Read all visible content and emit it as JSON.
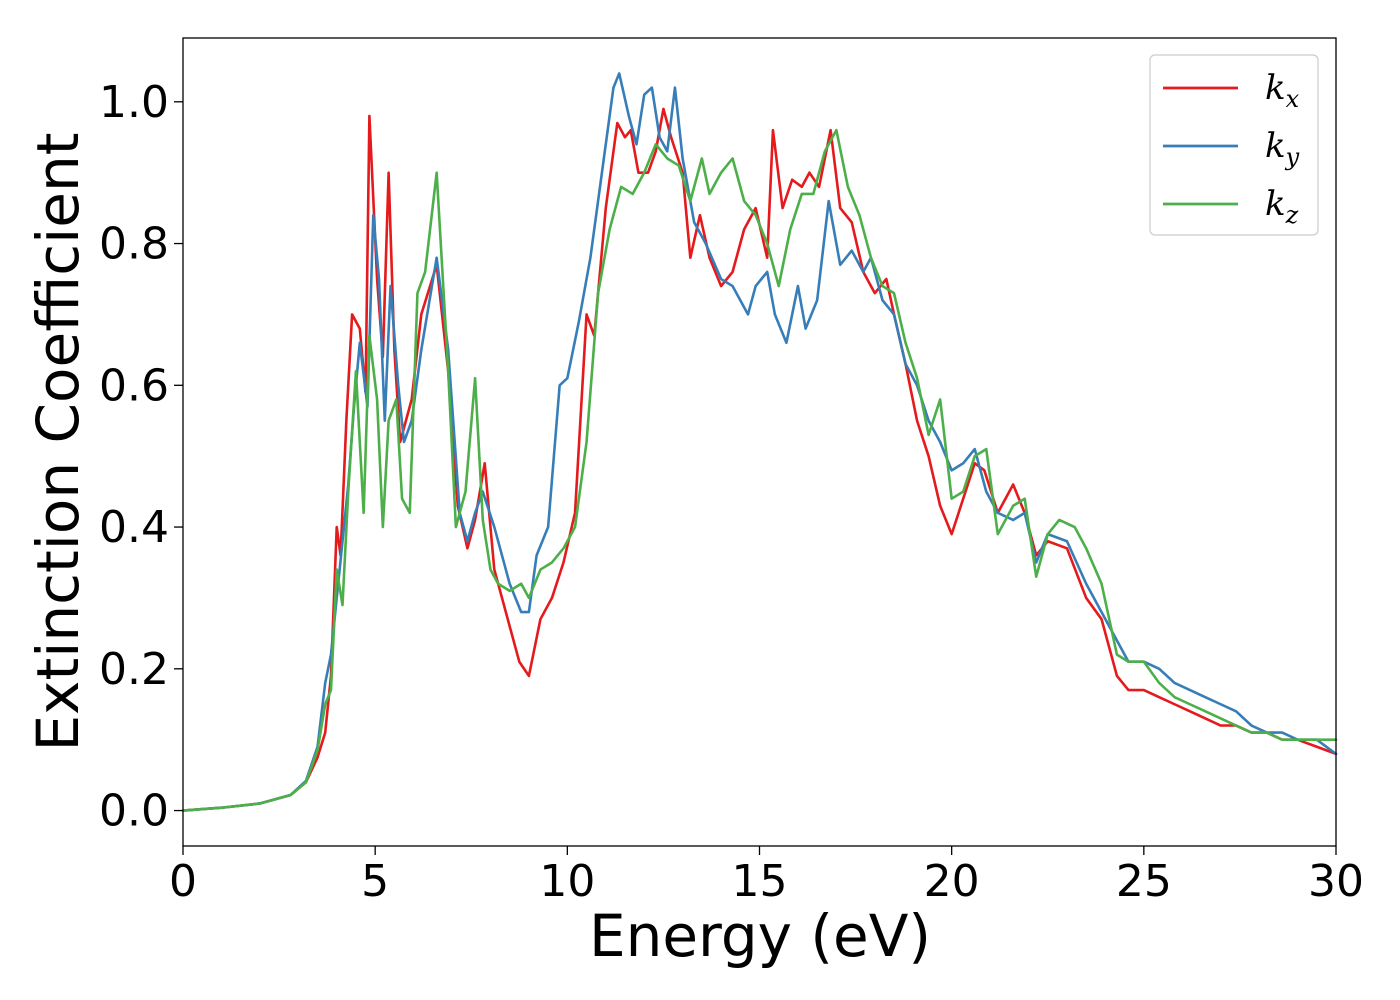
{
  "chart_data": {
    "type": "line",
    "title": "",
    "xlabel": "Energy (eV)",
    "ylabel": "Extinction Coefficient",
    "xlim": [
      0,
      30
    ],
    "ylim": [
      -0.05,
      1.09
    ],
    "xticks": [
      0,
      5,
      10,
      15,
      20,
      25,
      30
    ],
    "yticks": [
      0.0,
      0.2,
      0.4,
      0.6,
      0.8,
      1.0
    ],
    "xtick_labels": [
      "0",
      "5",
      "10",
      "15",
      "20",
      "25",
      "30"
    ],
    "ytick_labels": [
      "0.0",
      "0.2",
      "0.4",
      "0.6",
      "0.8",
      "1.0"
    ],
    "grid": false,
    "legend_position": "top-right",
    "series": [
      {
        "name": "k",
        "subscript": "x",
        "color": "#e41a1c",
        "x": [
          0,
          1,
          2,
          2.8,
          3.2,
          3.5,
          3.7,
          3.85,
          4.0,
          4.1,
          4.25,
          4.4,
          4.6,
          4.75,
          4.85,
          5.05,
          5.2,
          5.35,
          5.5,
          5.65,
          5.8,
          5.95,
          6.2,
          6.6,
          6.9,
          7.15,
          7.4,
          7.6,
          7.85,
          8.1,
          8.5,
          8.75,
          9.0,
          9.3,
          9.6,
          9.9,
          10.2,
          10.5,
          10.7,
          11.0,
          11.3,
          11.5,
          11.65,
          11.85,
          12.1,
          12.3,
          12.5,
          12.7,
          13.0,
          13.2,
          13.45,
          13.7,
          14.0,
          14.3,
          14.6,
          14.9,
          15.2,
          15.35,
          15.6,
          15.85,
          16.1,
          16.3,
          16.55,
          16.85,
          17.1,
          17.4,
          17.7,
          18.0,
          18.3,
          18.5,
          18.8,
          19.1,
          19.4,
          19.7,
          20.0,
          20.3,
          20.6,
          20.85,
          21.2,
          21.6,
          21.9,
          22.2,
          22.5,
          23.0,
          23.5,
          23.9,
          24.3,
          24.6,
          25.0,
          25.4,
          25.8,
          26.2,
          26.6,
          27.0,
          27.4,
          27.8,
          28.2,
          28.6,
          29.0,
          29.5,
          30.0
        ],
        "y": [
          0.0,
          0.004,
          0.01,
          0.022,
          0.04,
          0.075,
          0.11,
          0.19,
          0.4,
          0.36,
          0.55,
          0.7,
          0.68,
          0.59,
          0.98,
          0.75,
          0.64,
          0.9,
          0.65,
          0.52,
          0.55,
          0.58,
          0.7,
          0.77,
          0.62,
          0.43,
          0.37,
          0.41,
          0.49,
          0.34,
          0.26,
          0.21,
          0.19,
          0.27,
          0.3,
          0.35,
          0.42,
          0.7,
          0.67,
          0.85,
          0.97,
          0.95,
          0.96,
          0.9,
          0.9,
          0.93,
          0.99,
          0.95,
          0.9,
          0.78,
          0.84,
          0.78,
          0.74,
          0.76,
          0.82,
          0.85,
          0.78,
          0.96,
          0.85,
          0.89,
          0.88,
          0.9,
          0.88,
          0.96,
          0.85,
          0.83,
          0.76,
          0.73,
          0.75,
          0.7,
          0.63,
          0.55,
          0.5,
          0.43,
          0.39,
          0.44,
          0.49,
          0.48,
          0.42,
          0.46,
          0.42,
          0.36,
          0.38,
          0.37,
          0.3,
          0.27,
          0.19,
          0.17,
          0.17,
          0.16,
          0.15,
          0.14,
          0.13,
          0.12,
          0.12,
          0.11,
          0.11,
          0.1,
          0.1,
          0.09,
          0.08
        ]
      },
      {
        "name": "k",
        "subscript": "y",
        "color": "#377eb8",
        "x": [
          0,
          1,
          2,
          2.8,
          3.2,
          3.5,
          3.7,
          3.85,
          4.0,
          4.15,
          4.3,
          4.45,
          4.6,
          4.8,
          4.95,
          5.1,
          5.25,
          5.4,
          5.6,
          5.75,
          5.95,
          6.2,
          6.6,
          6.9,
          7.2,
          7.4,
          7.6,
          7.8,
          8.1,
          8.5,
          8.8,
          9.0,
          9.2,
          9.5,
          9.8,
          10.0,
          10.3,
          10.6,
          10.9,
          11.2,
          11.35,
          11.6,
          11.8,
          12.0,
          12.2,
          12.4,
          12.6,
          12.8,
          13.0,
          13.3,
          13.6,
          14.0,
          14.3,
          14.7,
          14.9,
          15.2,
          15.4,
          15.7,
          16.0,
          16.2,
          16.5,
          16.8,
          17.1,
          17.4,
          17.7,
          17.9,
          18.2,
          18.5,
          18.8,
          19.1,
          19.4,
          19.7,
          20.0,
          20.3,
          20.6,
          20.9,
          21.2,
          21.6,
          21.9,
          22.2,
          22.5,
          23.0,
          23.5,
          23.9,
          24.3,
          24.6,
          25.0,
          25.4,
          25.8,
          26.2,
          26.6,
          27.0,
          27.4,
          27.8,
          28.2,
          28.6,
          29.0,
          29.5,
          30.0
        ],
        "y": [
          0.0,
          0.004,
          0.01,
          0.022,
          0.042,
          0.09,
          0.18,
          0.22,
          0.3,
          0.38,
          0.46,
          0.57,
          0.66,
          0.57,
          0.84,
          0.75,
          0.55,
          0.74,
          0.6,
          0.52,
          0.55,
          0.65,
          0.78,
          0.65,
          0.42,
          0.38,
          0.42,
          0.45,
          0.4,
          0.32,
          0.28,
          0.28,
          0.36,
          0.4,
          0.6,
          0.61,
          0.69,
          0.78,
          0.9,
          1.02,
          1.04,
          0.98,
          0.94,
          1.01,
          1.02,
          0.95,
          0.93,
          1.02,
          0.92,
          0.83,
          0.8,
          0.75,
          0.74,
          0.7,
          0.74,
          0.76,
          0.7,
          0.66,
          0.74,
          0.68,
          0.72,
          0.86,
          0.77,
          0.79,
          0.76,
          0.78,
          0.72,
          0.7,
          0.63,
          0.6,
          0.55,
          0.52,
          0.48,
          0.49,
          0.51,
          0.45,
          0.42,
          0.41,
          0.42,
          0.35,
          0.39,
          0.38,
          0.32,
          0.28,
          0.24,
          0.21,
          0.21,
          0.2,
          0.18,
          0.17,
          0.16,
          0.15,
          0.14,
          0.12,
          0.11,
          0.11,
          0.1,
          0.1,
          0.08
        ]
      },
      {
        "name": "k",
        "subscript": "z",
        "color": "#4daf4a",
        "x": [
          0,
          1,
          2,
          2.8,
          3.2,
          3.5,
          3.7,
          3.85,
          4.0,
          4.15,
          4.3,
          4.5,
          4.7,
          4.85,
          5.05,
          5.2,
          5.35,
          5.55,
          5.7,
          5.9,
          6.1,
          6.3,
          6.6,
          6.9,
          7.1,
          7.35,
          7.6,
          7.8,
          8.0,
          8.2,
          8.5,
          8.8,
          9.0,
          9.3,
          9.6,
          9.9,
          10.2,
          10.5,
          10.8,
          11.1,
          11.4,
          11.7,
          12.0,
          12.3,
          12.6,
          12.9,
          13.2,
          13.5,
          13.7,
          14.0,
          14.3,
          14.6,
          14.9,
          15.2,
          15.5,
          15.8,
          16.1,
          16.4,
          16.7,
          17.0,
          17.3,
          17.6,
          17.9,
          18.2,
          18.5,
          18.8,
          19.1,
          19.4,
          19.7,
          20.0,
          20.3,
          20.6,
          20.9,
          21.2,
          21.6,
          21.9,
          22.2,
          22.5,
          22.8,
          23.2,
          23.5,
          23.9,
          24.3,
          24.6,
          25.0,
          25.4,
          25.8,
          26.2,
          26.6,
          27.0,
          27.4,
          27.8,
          28.2,
          28.6,
          29.0,
          29.5,
          30.0
        ],
        "y": [
          0.0,
          0.004,
          0.01,
          0.022,
          0.04,
          0.085,
          0.15,
          0.17,
          0.34,
          0.29,
          0.45,
          0.62,
          0.42,
          0.67,
          0.58,
          0.4,
          0.55,
          0.58,
          0.44,
          0.42,
          0.73,
          0.76,
          0.9,
          0.62,
          0.4,
          0.45,
          0.61,
          0.41,
          0.34,
          0.32,
          0.31,
          0.32,
          0.3,
          0.34,
          0.35,
          0.37,
          0.4,
          0.52,
          0.73,
          0.82,
          0.88,
          0.87,
          0.9,
          0.94,
          0.92,
          0.91,
          0.86,
          0.92,
          0.87,
          0.9,
          0.92,
          0.86,
          0.84,
          0.8,
          0.74,
          0.82,
          0.87,
          0.87,
          0.93,
          0.96,
          0.88,
          0.84,
          0.78,
          0.74,
          0.73,
          0.66,
          0.61,
          0.53,
          0.58,
          0.44,
          0.45,
          0.5,
          0.51,
          0.39,
          0.43,
          0.44,
          0.33,
          0.39,
          0.41,
          0.4,
          0.37,
          0.32,
          0.22,
          0.21,
          0.21,
          0.18,
          0.16,
          0.15,
          0.14,
          0.13,
          0.12,
          0.11,
          0.11,
          0.1,
          0.1,
          0.1,
          0.1
        ]
      }
    ]
  }
}
